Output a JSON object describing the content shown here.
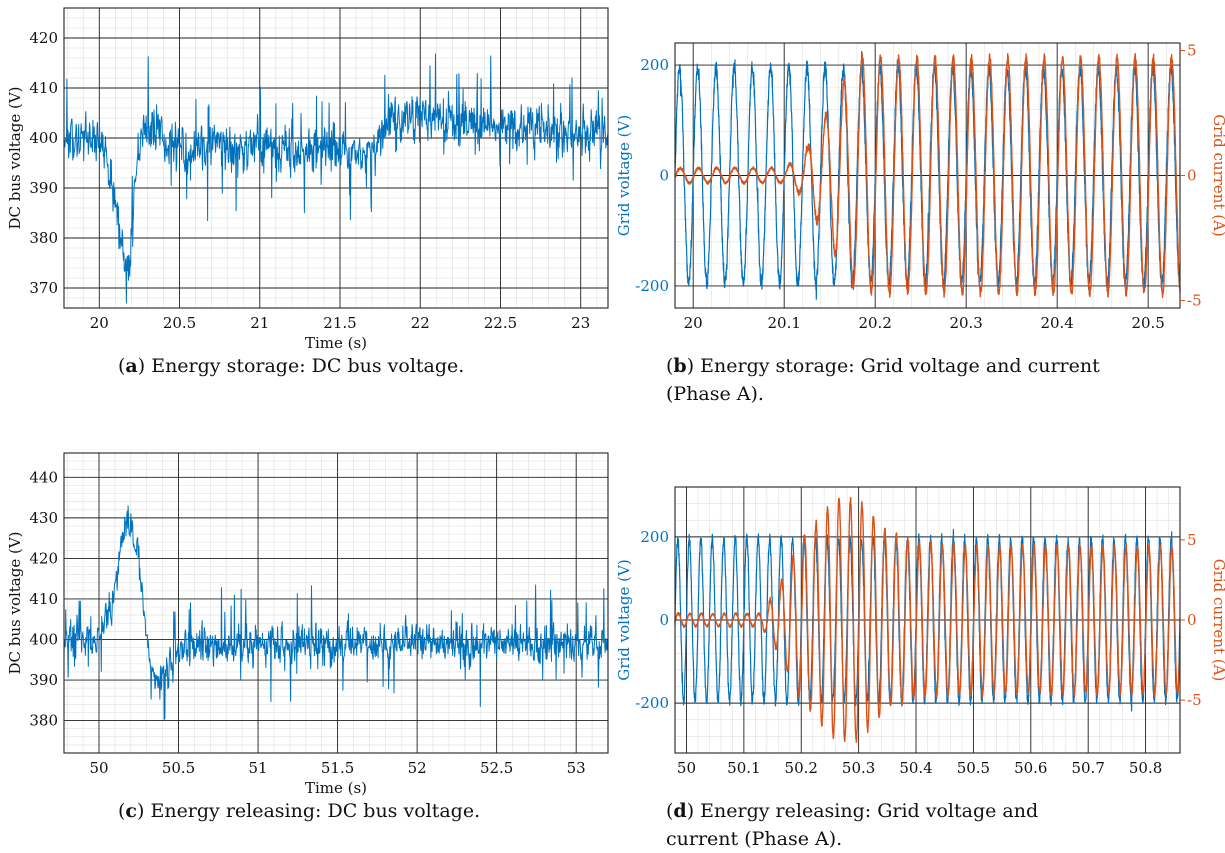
{
  "captions": [
    {
      "tag": "a",
      "text": " Energy storage: DC bus voltage."
    },
    {
      "tag": "b",
      "text": " Energy storage: Grid voltage and current (Phase A)."
    },
    {
      "tag": "c",
      "text": " Energy releasing: DC bus voltage."
    },
    {
      "tag": "d",
      "text": " Energy releasing: Grid voltage and current (Phase A)."
    }
  ],
  "colors": {
    "voltage": "#0072bd",
    "current": "#d95319"
  },
  "chart_data": [
    {
      "type": "line",
      "xlabel": "Time (s)",
      "ylabel": "DC bus voltage (V)",
      "xlim": [
        19.78,
        23.17
      ],
      "ylim": [
        366,
        426
      ],
      "xticks": [
        20,
        20.5,
        21,
        21.5,
        22,
        22.5,
        23
      ],
      "xtick_labels": [
        "20",
        "20.5",
        "21",
        "21.5",
        "22",
        "22.5",
        "23"
      ],
      "yticks": [
        370,
        380,
        390,
        400,
        410,
        420
      ],
      "ytick_labels": [
        "370",
        "380",
        "390",
        "400",
        "410",
        "420"
      ],
      "grid": true,
      "series": [
        {
          "description": "noisy DC bus voltage around 400 V",
          "x": [
            19.78,
            20.0,
            20.05,
            20.1,
            20.15,
            20.18,
            20.22,
            20.28,
            20.5,
            21.0,
            21.5,
            21.75,
            21.8,
            22.0,
            22.5,
            23.0,
            23.17
          ],
          "values": [
            400,
            400,
            397,
            386,
            378,
            373,
            388,
            403,
            398,
            398,
            397,
            399,
            404,
            404,
            402,
            401,
            401
          ]
        }
      ]
    },
    {
      "type": "line",
      "xlabel": "",
      "ylabel": "Grid voltage (V)",
      "y2label": "Grid current (A)",
      "xlim": [
        19.98,
        20.535
      ],
      "ylim": [
        -240,
        240
      ],
      "y2lim": [
        -5.3,
        5.3
      ],
      "xticks": [
        20,
        20.1,
        20.2,
        20.3,
        20.4,
        20.5
      ],
      "xtick_labels": [
        "20",
        "20.1",
        "20.2",
        "20.3",
        "20.4",
        "20.5"
      ],
      "yticks": [
        -200,
        0,
        200
      ],
      "ytick_labels": [
        "-200",
        "0",
        "200"
      ],
      "y2ticks": [
        -5,
        0,
        5
      ],
      "y2tick_labels": [
        "-5",
        "0",
        "5"
      ],
      "grid": true,
      "series": [
        {
          "name": "voltage",
          "axis": "left",
          "frequency_hz": 50,
          "amplitude": 195
        },
        {
          "name": "current",
          "axis": "right",
          "frequency_hz": 50,
          "x": [
            19.98,
            20.1,
            20.12,
            20.15,
            20.18,
            20.535
          ],
          "amplitude": [
            0.3,
            0.3,
            0.8,
            2.7,
            4.7,
            4.7
          ]
        }
      ]
    },
    {
      "type": "line",
      "xlabel": "Time (s)",
      "ylabel": "DC bus voltage (V)",
      "xlim": [
        49.78,
        53.2
      ],
      "ylim": [
        372,
        446
      ],
      "xticks": [
        50,
        50.5,
        51,
        51.5,
        52,
        52.5,
        53
      ],
      "xtick_labels": [
        "50",
        "50.5",
        "51",
        "51.5",
        "52",
        "52.5",
        "53"
      ],
      "yticks": [
        380,
        390,
        400,
        410,
        420,
        430,
        440
      ],
      "ytick_labels": [
        "380",
        "390",
        "400",
        "410",
        "420",
        "430",
        "440"
      ],
      "grid": true,
      "series": [
        {
          "description": "noisy DC bus voltage around 400 V",
          "x": [
            49.78,
            50.0,
            50.1,
            50.15,
            50.2,
            50.25,
            50.3,
            50.35,
            50.4,
            50.5,
            51.0,
            53.2
          ],
          "values": [
            400,
            400,
            412,
            427,
            430,
            418,
            400,
            390,
            390,
            398,
            399,
            399
          ]
        }
      ]
    },
    {
      "type": "line",
      "xlabel": "",
      "ylabel": "Grid voltage (V)",
      "y2label": "Grid current (A)",
      "xlim": [
        49.98,
        50.86
      ],
      "ylim": [
        -320,
        320
      ],
      "y2lim": [
        -8.3,
        8.3
      ],
      "xticks": [
        50,
        50.1,
        50.2,
        50.3,
        50.4,
        50.5,
        50.6,
        50.7,
        50.8
      ],
      "xtick_labels": [
        "50",
        "50.1",
        "50.2",
        "50.3",
        "50.4",
        "50.5",
        "50.6",
        "50.7",
        "50.8"
      ],
      "yticks": [
        -200,
        0,
        200
      ],
      "ytick_labels": [
        "-200",
        "0",
        "200"
      ],
      "y2ticks": [
        -5,
        0,
        5
      ],
      "y2tick_labels": [
        "-5",
        "0",
        "5"
      ],
      "grid": true,
      "series": [
        {
          "name": "voltage",
          "axis": "left",
          "frequency_hz": 50,
          "amplitude": 195
        },
        {
          "name": "current",
          "axis": "right",
          "frequency_hz": 50,
          "x": [
            49.98,
            50.13,
            50.16,
            50.2,
            50.26,
            50.3,
            50.35,
            50.4,
            50.5,
            50.86
          ],
          "amplitude": [
            0.4,
            0.4,
            2.0,
            5.0,
            7.5,
            7.5,
            5.5,
            4.8,
            4.6,
            4.6
          ]
        }
      ]
    }
  ]
}
